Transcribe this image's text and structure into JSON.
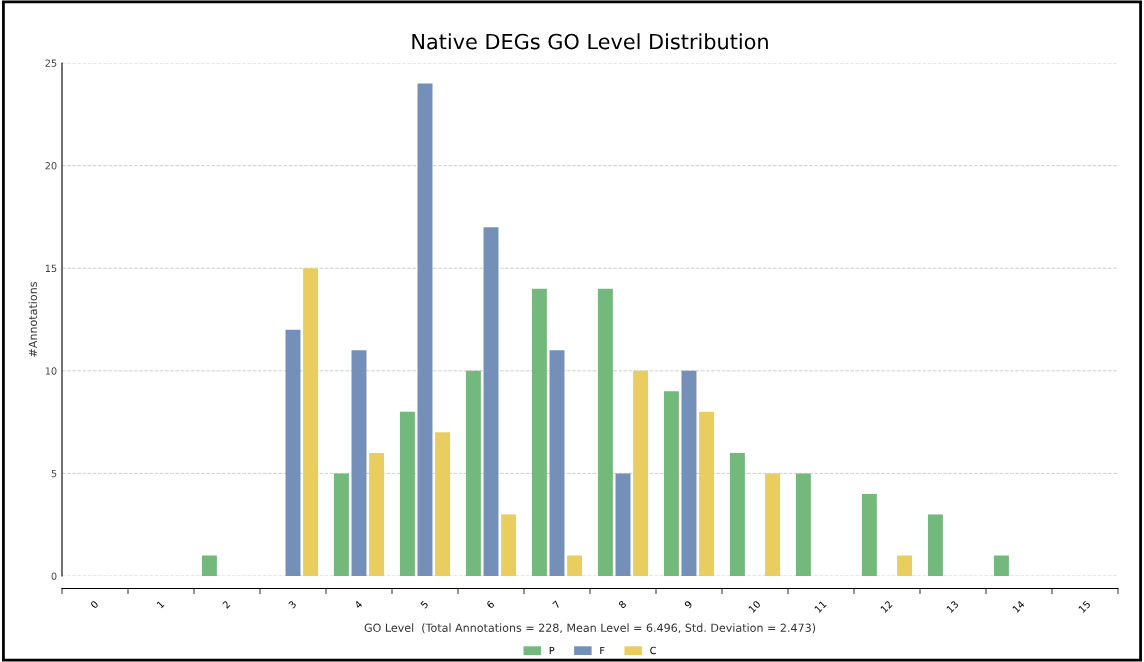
{
  "chart_data": {
    "type": "bar",
    "title": "Native DEGs GO Level Distribution",
    "xlabel": "GO Level  (Total Annotations = 228, Mean Level = 6.496, Std. Deviation = 2.473)",
    "ylabel": "#Annotations",
    "categories": [
      "0",
      "1",
      "2",
      "3",
      "4",
      "5",
      "6",
      "7",
      "8",
      "9",
      "10",
      "11",
      "12",
      "13",
      "14",
      "15"
    ],
    "series": [
      {
        "name": "P",
        "color": "#73b97c",
        "values": [
          0,
          0,
          1,
          0,
          5,
          8,
          10,
          14,
          14,
          9,
          6,
          5,
          4,
          3,
          1,
          0
        ]
      },
      {
        "name": "F",
        "color": "#7590b8",
        "values": [
          0,
          0,
          0,
          12,
          11,
          24,
          17,
          11,
          5,
          10,
          0,
          0,
          0,
          0,
          0,
          0
        ]
      },
      {
        "name": "C",
        "color": "#e9cd5f",
        "values": [
          0,
          0,
          0,
          15,
          6,
          7,
          3,
          1,
          10,
          8,
          5,
          0,
          1,
          0,
          0,
          0
        ]
      }
    ],
    "ylim": [
      0,
      25
    ],
    "yticks": [
      0,
      5,
      10,
      15,
      20,
      25
    ],
    "grid": "y",
    "legend": "bottom"
  }
}
